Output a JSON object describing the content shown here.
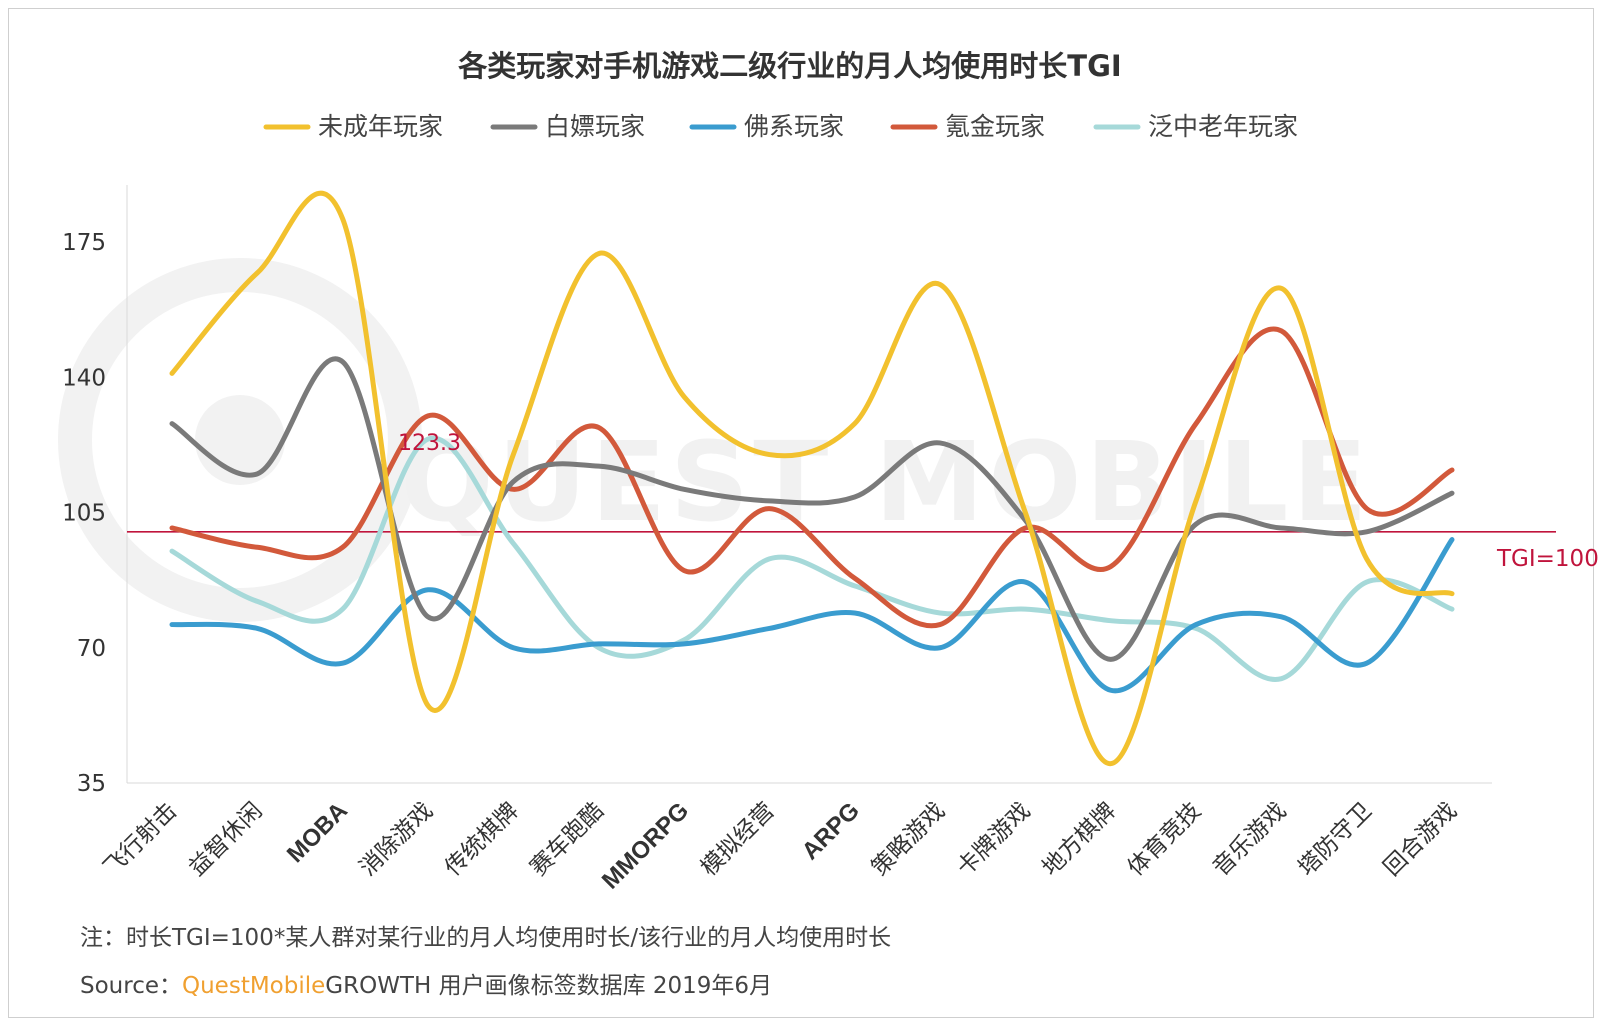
{
  "chart_data": {
    "type": "line",
    "title": "各类玩家对手机游戏二级行业的月人均使用时长TGI",
    "categories": [
      "飞行射击",
      "益智休闲",
      "MOBA",
      "消除游戏",
      "传统棋牌",
      "赛车跑酷",
      "MMORPG",
      "模拟经营",
      "ARPG",
      "策略游戏",
      "卡牌游戏",
      "地方棋牌",
      "体育竞技",
      "音乐游戏",
      "塔防守卫",
      "回合游戏"
    ],
    "ylim": [
      35,
      190
    ],
    "yticks": [
      35,
      70,
      105,
      140,
      175
    ],
    "series": [
      {
        "name": "未成年玩家",
        "color": "#f2c12e",
        "values": [
          141,
          167,
          181,
          55,
          120,
          172,
          135,
          120,
          128,
          164,
          105,
          40,
          108,
          163,
          93,
          84
        ]
      },
      {
        "name": "白嫖玩家",
        "color": "#7a7a7a",
        "values": [
          128,
          115,
          144,
          78,
          113,
          117,
          111,
          108,
          109,
          123,
          103,
          67,
          102,
          101,
          100,
          110
        ]
      },
      {
        "name": "佛系玩家",
        "color": "#3a9ccf",
        "values": [
          76,
          75,
          66,
          85,
          70,
          71,
          71,
          75,
          79,
          70,
          87,
          59,
          76,
          78,
          66,
          98
        ]
      },
      {
        "name": "氪金玩家",
        "color": "#d2593b",
        "values": [
          101,
          96,
          96,
          130,
          111,
          127,
          90,
          106,
          88,
          76,
          101,
          91,
          128,
          152,
          106,
          116
        ]
      },
      {
        "name": "泛中老年玩家",
        "color": "#a6d9d9",
        "values": [
          95,
          82,
          80,
          124,
          97,
          70,
          72,
          93,
          86,
          79,
          80,
          77,
          75,
          62,
          87,
          80
        ]
      }
    ],
    "reference_line": {
      "value": 100,
      "label": "TGI=100",
      "color": "#c0143c"
    },
    "annotation": {
      "category": "消除游戏",
      "value": 123.3,
      "text": "123.3"
    },
    "watermark": "QUEST MOBILE",
    "grid": false,
    "legend_position": "top"
  },
  "note": "注：时长TGI=100*某人群对某行业的月人均使用时长/该行业的月人均使用时长",
  "source": {
    "prefix": "Source：",
    "brand": "QuestMobile",
    "rest": "GROWTH 用户画像标签数据库 2019年6月"
  }
}
